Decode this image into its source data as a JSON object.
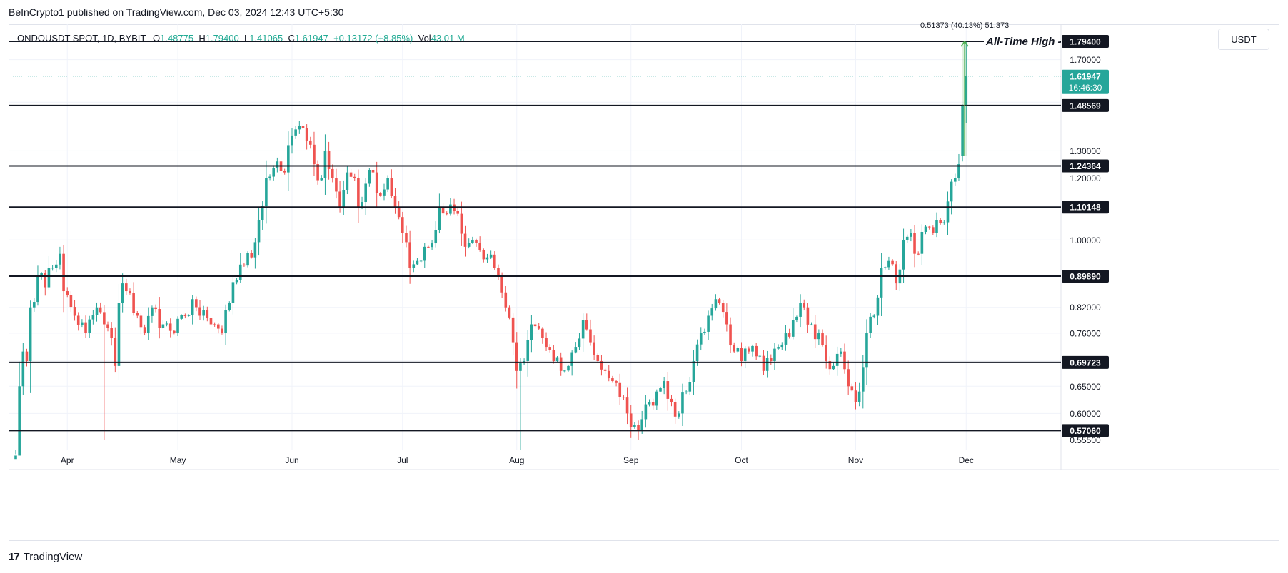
{
  "publish_line": "BeInCrypto1 published on TradingView.com, Dec 03, 2024 12:43 UTC+5:30",
  "header": {
    "symbol": "ONDOUSDT SPOT, 1D, BYBIT",
    "o_label": "O",
    "o_value": "1.48775",
    "h_label": "H",
    "h_value": "1.79400",
    "l_label": "L",
    "l_value": "1.41065",
    "c_label": "C",
    "c_value": "1.61947",
    "change": "+0.13172 (+8.85%)",
    "vol_label": "Vol",
    "vol_value": "43.01 M"
  },
  "currency_button": "USDT",
  "brand": {
    "logo": "17",
    "name": "TradingView"
  },
  "colors": {
    "up": "#26a69a",
    "down": "#ef5350",
    "level": "#131722",
    "measure": "#4caf50"
  },
  "chart_data": {
    "type": "candlestick",
    "title": "ONDOUSDT SPOT, 1D, BYBIT",
    "log_scale": true,
    "ylim": [
      0.535,
      1.87
    ],
    "y_ticks": [
      "1.70000",
      "1.30000",
      "1.20000",
      "1.00000",
      "0.82000",
      "0.76000",
      "0.65000",
      "0.60000",
      "0.55500"
    ],
    "x_ticks": [
      {
        "label": "Apr",
        "index": 14
      },
      {
        "label": "May",
        "index": 44
      },
      {
        "label": "Jun",
        "index": 75
      },
      {
        "label": "Jul",
        "index": 105
      },
      {
        "label": "Aug",
        "index": 136
      },
      {
        "label": "Sep",
        "index": 167
      },
      {
        "label": "Oct",
        "index": 197
      },
      {
        "label": "Nov",
        "index": 228
      },
      {
        "label": "Dec",
        "index": 258
      }
    ],
    "candle_count": 260,
    "horizontal_levels": [
      1.794,
      1.48569,
      1.24364,
      1.10148,
      0.8989,
      0.69723,
      0.5706
    ],
    "level_labels": [
      "1.79400",
      "1.48569",
      "1.24364",
      "1.10148",
      "0.89890",
      "0.69723",
      "0.57060"
    ],
    "annotation": "All-Time High",
    "current_price": "1.61947",
    "current_price_value": 1.61947,
    "countdown": "16:46:30",
    "measure_label": "0.51373 (40.13%) 51,373",
    "measure_from": 1.28,
    "measure_to": 1.794,
    "anchors": [
      [
        0,
        0.53
      ],
      [
        1,
        0.65
      ],
      [
        2,
        0.72
      ],
      [
        3,
        0.7
      ],
      [
        4,
        0.82
      ],
      [
        6,
        0.9
      ],
      [
        8,
        0.87
      ],
      [
        9,
        0.92
      ],
      [
        12,
        0.96
      ],
      [
        13,
        0.86
      ],
      [
        16,
        0.8
      ],
      [
        19,
        0.76
      ],
      [
        22,
        0.82
      ],
      [
        24,
        0.78
      ],
      [
        26,
        0.75
      ],
      [
        27,
        0.69
      ],
      [
        28,
        0.83
      ],
      [
        29,
        0.88
      ],
      [
        30,
        0.86
      ],
      [
        33,
        0.8
      ],
      [
        35,
        0.76
      ],
      [
        37,
        0.82
      ],
      [
        40,
        0.78
      ],
      [
        43,
        0.76
      ],
      [
        46,
        0.8
      ],
      [
        48,
        0.84
      ],
      [
        50,
        0.8
      ],
      [
        53,
        0.78
      ],
      [
        56,
        0.76
      ],
      [
        58,
        0.83
      ],
      [
        61,
        0.93
      ],
      [
        64,
        0.95
      ],
      [
        66,
        1.06
      ],
      [
        68,
        1.2
      ],
      [
        71,
        1.26
      ],
      [
        73,
        1.22
      ],
      [
        75,
        1.36
      ],
      [
        77,
        1.4
      ],
      [
        79,
        1.34
      ],
      [
        81,
        1.25
      ],
      [
        83,
        1.2
      ],
      [
        84,
        1.3
      ],
      [
        86,
        1.2
      ],
      [
        88,
        1.1
      ],
      [
        90,
        1.22
      ],
      [
        92,
        1.2
      ],
      [
        93,
        1.1
      ],
      [
        95,
        1.18
      ],
      [
        97,
        1.22
      ],
      [
        99,
        1.14
      ],
      [
        101,
        1.2
      ],
      [
        103,
        1.1
      ],
      [
        105,
        1.02
      ],
      [
        107,
        0.92
      ],
      [
        109,
        0.94
      ],
      [
        111,
        0.98
      ],
      [
        113,
        0.99
      ],
      [
        115,
        1.1
      ],
      [
        117,
        1.08
      ],
      [
        118,
        1.11
      ],
      [
        120,
        1.08
      ],
      [
        122,
        0.98
      ],
      [
        124,
        1.0
      ],
      [
        126,
        0.97
      ],
      [
        128,
        0.95
      ],
      [
        130,
        0.92
      ],
      [
        131,
        0.9
      ],
      [
        133,
        0.82
      ],
      [
        135,
        0.74
      ],
      [
        136,
        0.68
      ],
      [
        138,
        0.7
      ],
      [
        140,
        0.78
      ],
      [
        142,
        0.77
      ],
      [
        144,
        0.73
      ],
      [
        146,
        0.7
      ],
      [
        148,
        0.68
      ],
      [
        150,
        0.69
      ],
      [
        152,
        0.73
      ],
      [
        154,
        0.79
      ],
      [
        156,
        0.74
      ],
      [
        158,
        0.7
      ],
      [
        160,
        0.68
      ],
      [
        162,
        0.66
      ],
      [
        164,
        0.63
      ],
      [
        166,
        0.6
      ],
      [
        168,
        0.58
      ],
      [
        169,
        0.57
      ],
      [
        170,
        0.59
      ],
      [
        172,
        0.62
      ],
      [
        174,
        0.64
      ],
      [
        176,
        0.66
      ],
      [
        178,
        0.62
      ],
      [
        180,
        0.6
      ],
      [
        182,
        0.64
      ],
      [
        184,
        0.7
      ],
      [
        186,
        0.76
      ],
      [
        188,
        0.8
      ],
      [
        190,
        0.84
      ],
      [
        191,
        0.83
      ],
      [
        193,
        0.78
      ],
      [
        195,
        0.72
      ],
      [
        197,
        0.7
      ],
      [
        199,
        0.72
      ],
      [
        201,
        0.71
      ],
      [
        203,
        0.68
      ],
      [
        205,
        0.7
      ],
      [
        207,
        0.73
      ],
      [
        209,
        0.76
      ],
      [
        211,
        0.79
      ],
      [
        213,
        0.83
      ],
      [
        214,
        0.82
      ],
      [
        216,
        0.78
      ],
      [
        218,
        0.76
      ],
      [
        220,
        0.7
      ],
      [
        222,
        0.69
      ],
      [
        224,
        0.72
      ],
      [
        226,
        0.65
      ],
      [
        228,
        0.62
      ],
      [
        229,
        0.64
      ],
      [
        231,
        0.76
      ],
      [
        233,
        0.8
      ],
      [
        235,
        0.92
      ],
      [
        237,
        0.94
      ],
      [
        239,
        0.88
      ],
      [
        241,
        1.0
      ],
      [
        243,
        1.02
      ],
      [
        245,
        0.96
      ],
      [
        247,
        1.04
      ],
      [
        249,
        1.02
      ],
      [
        251,
        1.05
      ],
      [
        253,
        1.12
      ],
      [
        255,
        1.2
      ],
      [
        256,
        1.25
      ],
      [
        257,
        1.48775
      ],
      [
        258,
        1.61947
      ]
    ],
    "drawn_candles": [
      {
        "i": 257,
        "o": 1.28,
        "h": 1.49,
        "l": 1.26,
        "c": 1.48775
      },
      {
        "i": 258,
        "o": 1.48775,
        "h": 1.794,
        "l": 1.41065,
        "c": 1.61947
      }
    ]
  }
}
